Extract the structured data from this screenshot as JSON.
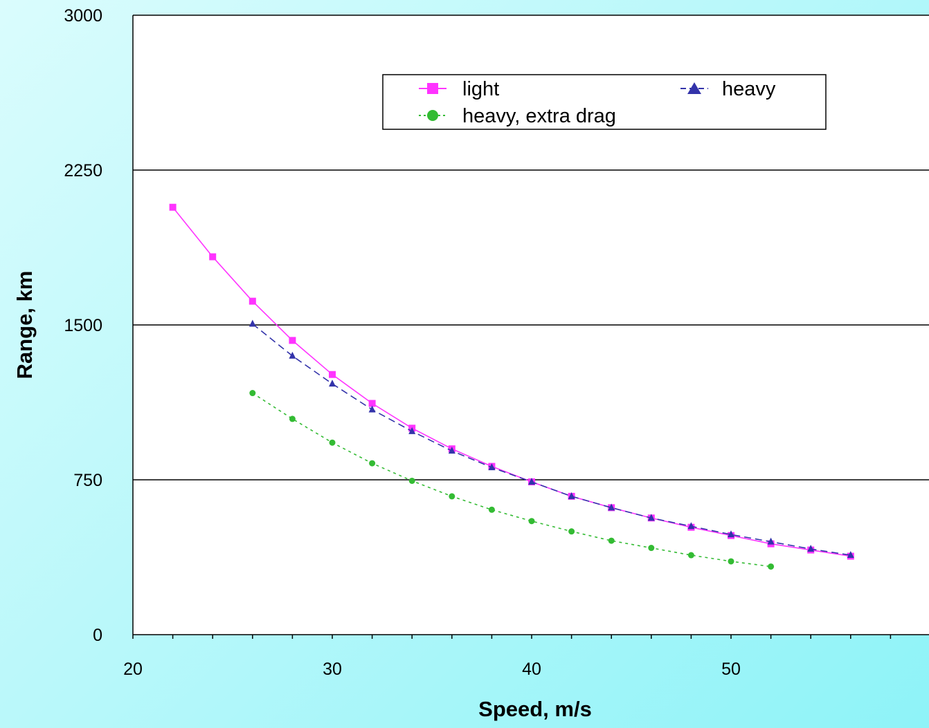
{
  "chart_data": {
    "type": "line",
    "title": "",
    "xlabel": "Speed, m/s",
    "ylabel": "Range, km",
    "xlim": [
      20,
      58
    ],
    "ylim": [
      0,
      3000
    ],
    "x_ticks": [
      20,
      30,
      40,
      50
    ],
    "y_ticks": [
      0,
      750,
      1500,
      2250,
      3000
    ],
    "grid": "horizontal",
    "legend_position": "top-right",
    "series": [
      {
        "name": "light",
        "color": "#ff33ff",
        "marker": "square",
        "line_style": "solid",
        "x": [
          22,
          24,
          26,
          28,
          30,
          32,
          34,
          36,
          38,
          40,
          42,
          44,
          46,
          48,
          50,
          52,
          54,
          56
        ],
        "y": [
          2070,
          1830,
          1615,
          1425,
          1260,
          1120,
          1000,
          900,
          815,
          740,
          670,
          615,
          565,
          520,
          480,
          440,
          410,
          380
        ]
      },
      {
        "name": "heavy",
        "color": "#3333aa",
        "marker": "triangle",
        "line_style": "dashed",
        "x": [
          26,
          28,
          30,
          32,
          34,
          36,
          38,
          40,
          42,
          44,
          46,
          48,
          50,
          52,
          54,
          56
        ],
        "y": [
          1505,
          1350,
          1215,
          1090,
          985,
          890,
          810,
          740,
          670,
          615,
          565,
          525,
          485,
          450,
          415,
          385
        ]
      },
      {
        "name": "heavy, extra drag",
        "color": "#33bb33",
        "marker": "circle",
        "line_style": "dotted",
        "x": [
          26,
          28,
          30,
          32,
          34,
          36,
          38,
          40,
          42,
          44,
          46,
          48,
          50,
          52
        ],
        "y": [
          1170,
          1045,
          930,
          830,
          745,
          670,
          605,
          550,
          500,
          455,
          420,
          385,
          355,
          330
        ]
      }
    ]
  }
}
